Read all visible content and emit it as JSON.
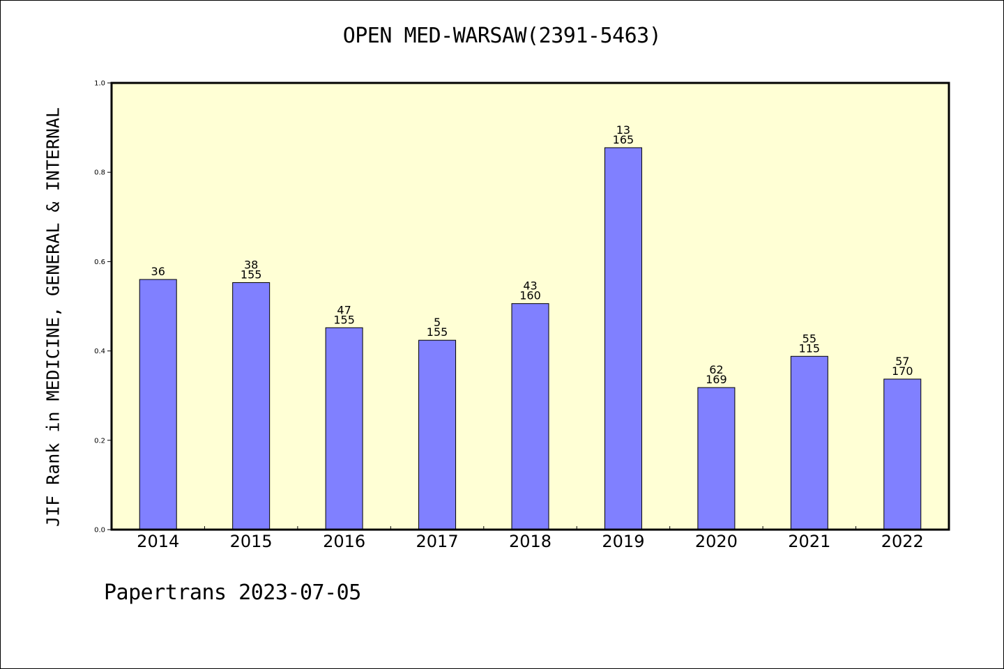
{
  "colors": {
    "plot_background": "#ffffd5",
    "bar_fill": "#8080ff",
    "axis": "#000000"
  },
  "footer": "Papertrans 2023-07-05",
  "chart_data": {
    "type": "bar",
    "title": "OPEN MED-WARSAW(2391-5463)",
    "xlabel": "",
    "ylabel": "JIF Rank in MEDICINE, GENERAL & INTERNAL",
    "ylim": [
      0,
      1.0
    ],
    "yticks": [
      "0.0",
      "0.2",
      "0.4",
      "0.6",
      "0.8",
      "1.0"
    ],
    "grid": false,
    "categories": [
      "2014",
      "2015",
      "2016",
      "2017",
      "2018",
      "2019",
      "2020",
      "2021",
      "2022"
    ],
    "values": [
      0.56,
      0.553,
      0.452,
      0.424,
      0.506,
      0.855,
      0.318,
      0.388,
      0.337
    ],
    "labels": [
      [
        "36"
      ],
      [
        "38",
        "155"
      ],
      [
        "47",
        "155"
      ],
      [
        "5",
        "155"
      ],
      [
        "43",
        "160"
      ],
      [
        "13",
        "165"
      ],
      [
        "62",
        "169"
      ],
      [
        "55",
        "115"
      ],
      [
        "57",
        "170"
      ]
    ]
  }
}
